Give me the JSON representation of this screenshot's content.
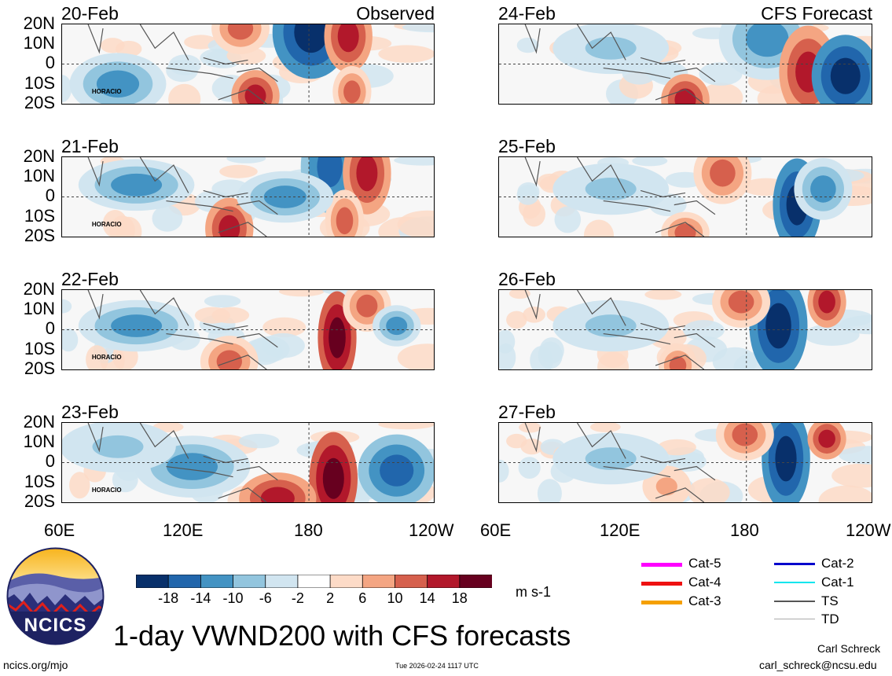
{
  "observed_label": "Observed",
  "forecast_label": "CFS Forecast",
  "colors": {
    "levels": [
      "#08306b",
      "#2166ac",
      "#4393c3",
      "#92c5de",
      "#d1e5f0",
      "#ffffff",
      "#fddbc7",
      "#f4a582",
      "#d6604d",
      "#b2182b",
      "#67001f"
    ]
  },
  "chart_data": [
    {
      "type": "heatmap",
      "title": "20-Feb",
      "group": "Observed",
      "ylim": [
        "20S",
        "20N"
      ],
      "xlim": [
        "60E",
        "120W"
      ],
      "annotations": [
        "HORACIO"
      ]
    },
    {
      "type": "heatmap",
      "title": "21-Feb",
      "group": "Observed",
      "ylim": [
        "20S",
        "20N"
      ],
      "xlim": [
        "60E",
        "120W"
      ],
      "annotations": [
        "HORACIO"
      ]
    },
    {
      "type": "heatmap",
      "title": "22-Feb",
      "group": "Observed",
      "ylim": [
        "20S",
        "20N"
      ],
      "xlim": [
        "60E",
        "120W"
      ],
      "annotations": [
        "HORACIO"
      ]
    },
    {
      "type": "heatmap",
      "title": "23-Feb",
      "group": "Observed",
      "ylim": [
        "20S",
        "20N"
      ],
      "xlim": [
        "60E",
        "120W"
      ],
      "annotations": [
        "HORACIO"
      ]
    },
    {
      "type": "heatmap",
      "title": "24-Feb",
      "group": "CFS Forecast",
      "ylim": [
        "20S",
        "20N"
      ],
      "xlim": [
        "60E",
        "120W"
      ]
    },
    {
      "type": "heatmap",
      "title": "25-Feb",
      "group": "CFS Forecast",
      "ylim": [
        "20S",
        "20N"
      ],
      "xlim": [
        "60E",
        "120W"
      ]
    },
    {
      "type": "heatmap",
      "title": "26-Feb",
      "group": "CFS Forecast",
      "ylim": [
        "20S",
        "20N"
      ],
      "xlim": [
        "60E",
        "120W"
      ]
    },
    {
      "type": "heatmap",
      "title": "27-Feb",
      "group": "CFS Forecast",
      "ylim": [
        "20S",
        "20N"
      ],
      "xlim": [
        "60E",
        "120W"
      ]
    }
  ],
  "lat_ticks": [
    "20N",
    "10N",
    "0",
    "10S",
    "20S"
  ],
  "lon_ticks_left": [
    "60E",
    "120E",
    "180",
    "120W"
  ],
  "lon_ticks_right": [
    "60E",
    "120E",
    "180",
    "120W"
  ],
  "colorbar": {
    "ticks": [
      "-18",
      "-14",
      "-10",
      "-6",
      "-2",
      "2",
      "6",
      "10",
      "14",
      "18"
    ],
    "units": "m s-1"
  },
  "legend": [
    {
      "label": "Cat-5",
      "color": "#ff00ff"
    },
    {
      "label": "Cat-4",
      "color": "#ee1111"
    },
    {
      "label": "Cat-3",
      "color": "#f5a000"
    },
    {
      "label": "Cat-2",
      "color": "#0000cc"
    },
    {
      "label": "Cat-1",
      "color": "#00e5ee"
    },
    {
      "label": "TS",
      "color": "#555555"
    },
    {
      "label": "TD",
      "color": "#aaaaaa"
    }
  ],
  "logo_text": "NCICS",
  "main_title": "1-day VWND200 with CFS forecasts",
  "footer": {
    "site": "ncics.org/mjo",
    "timestamp": "Tue 2026-02-24 1117 UTC",
    "author": "Carl Schreck",
    "email": "carl_schreck@ncsu.edu"
  }
}
